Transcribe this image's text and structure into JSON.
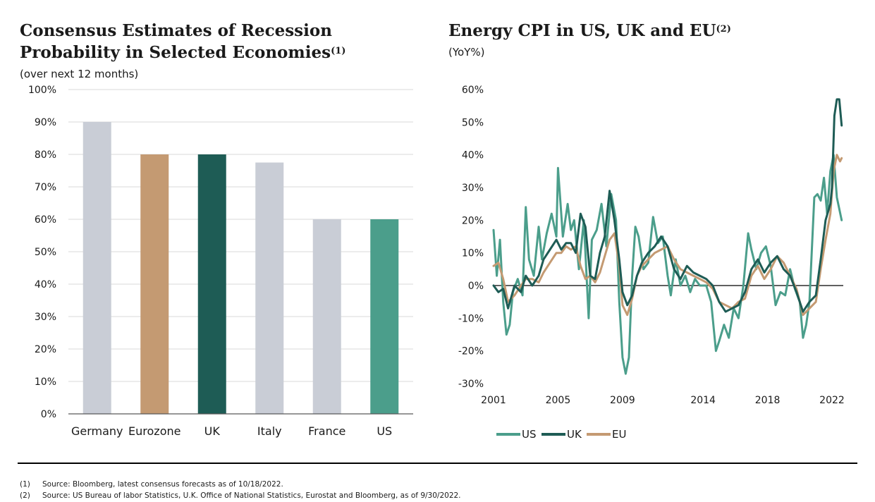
{
  "left_chart": {
    "title_line1": "Consensus Estimates of Recession",
    "title_line2": "Probability in Selected Economies",
    "title_sup": "(1)",
    "subtitle": "(over next 12 months)"
  },
  "right_chart": {
    "title": "Energy CPI in US, UK and EU",
    "title_sup": "(2)",
    "subtitle": "(YoY%)"
  },
  "footnotes": [
    {
      "num": "(1)",
      "text": "Source: Bloomberg, latest consensus forecasts as of 10/18/2022."
    },
    {
      "num": "(2)",
      "text": "Source: US Bureau of labor Statistics, U.K. Office of National Statistics, Eurostat and Bloomberg, as of 9/30/2022."
    }
  ],
  "chart_data": [
    {
      "type": "bar",
      "categories": [
        "Germany",
        "Eurozone",
        "UK",
        "Italy",
        "France",
        "US"
      ],
      "values": [
        90,
        80,
        80,
        77.5,
        60,
        60
      ],
      "colors": [
        "#c9cdd6",
        "#c49a72",
        "#1e5c55",
        "#c9cdd6",
        "#c9cdd6",
        "#4b9e8b"
      ],
      "ylim": [
        0,
        100
      ],
      "yticks": [
        0,
        10,
        20,
        30,
        40,
        50,
        60,
        70,
        80,
        90,
        100
      ],
      "ytick_labels": [
        "0%",
        "10%",
        "20%",
        "30%",
        "40%",
        "50%",
        "60%",
        "70%",
        "80%",
        "90%",
        "100%"
      ],
      "grid": true
    },
    {
      "type": "line",
      "xlim": [
        2001.0,
        2022.7
      ],
      "ylim": [
        -30,
        60
      ],
      "xticks": [
        2001,
        2005,
        2009,
        2014,
        2018,
        2022
      ],
      "xtick_labels": [
        "2001",
        "2005",
        "2009",
        "2014",
        "2018",
        "2022"
      ],
      "yticks": [
        -30,
        -20,
        -10,
        0,
        10,
        20,
        30,
        40,
        50,
        60
      ],
      "ytick_labels": [
        "-30%",
        "-20%",
        "-10%",
        "0%",
        "10%",
        "20%",
        "30%",
        "40%",
        "50%",
        "60%"
      ],
      "zero_line": true,
      "legend_position": "bottom",
      "series": [
        {
          "name": "US",
          "color": "#4b9e8b",
          "x": [
            2001.0,
            2001.2,
            2001.4,
            2001.6,
            2001.8,
            2002.0,
            2002.2,
            2002.5,
            2002.8,
            2003.0,
            2003.2,
            2003.5,
            2003.8,
            2004.0,
            2004.3,
            2004.6,
            2004.9,
            2005.0,
            2005.3,
            2005.6,
            2005.8,
            2006.0,
            2006.3,
            2006.6,
            2006.9,
            2007.1,
            2007.4,
            2007.7,
            2008.0,
            2008.3,
            2008.6,
            2008.8,
            2009.0,
            2009.2,
            2009.4,
            2009.6,
            2009.8,
            2010.0,
            2010.3,
            2010.6,
            2010.9,
            2011.2,
            2011.5,
            2011.8,
            2012.0,
            2012.3,
            2012.6,
            2012.9,
            2013.2,
            2013.5,
            2013.8,
            2014.2,
            2014.5,
            2014.8,
            2015.0,
            2015.3,
            2015.6,
            2015.9,
            2016.2,
            2016.5,
            2016.8,
            2017.0,
            2017.3,
            2017.6,
            2017.9,
            2018.2,
            2018.5,
            2018.8,
            2019.1,
            2019.4,
            2019.7,
            2020.0,
            2020.2,
            2020.4,
            2020.6,
            2020.9,
            2021.1,
            2021.3,
            2021.5,
            2021.7,
            2021.9,
            2022.1,
            2022.3,
            2022.6
          ],
          "y": [
            17,
            3,
            14,
            -5,
            -15,
            -12,
            -2,
            2,
            -3,
            24,
            8,
            3,
            18,
            8,
            16,
            22,
            15,
            36,
            15,
            25,
            17,
            20,
            5,
            20,
            -10,
            14,
            17,
            25,
            12,
            28,
            20,
            -5,
            -22,
            -27,
            -22,
            3,
            18,
            15,
            5,
            7,
            21,
            13,
            15,
            3,
            -3,
            8,
            0,
            3,
            -2,
            2,
            0,
            0,
            -5,
            -20,
            -17,
            -12,
            -16,
            -7,
            -10,
            0,
            16,
            11,
            5,
            10,
            12,
            6,
            -6,
            -2,
            -3,
            5,
            -1,
            -5,
            -16,
            -12,
            -5,
            27,
            28,
            26,
            33,
            22,
            35,
            40,
            27,
            20
          ]
        },
        {
          "name": "UK",
          "color": "#1e5c55",
          "x": [
            2001.0,
            2001.3,
            2001.6,
            2001.9,
            2002.3,
            2002.7,
            2003.0,
            2003.4,
            2003.8,
            2004.1,
            2004.5,
            2004.9,
            2005.2,
            2005.5,
            2005.8,
            2006.1,
            2006.4,
            2006.7,
            2007.0,
            2007.3,
            2007.6,
            2007.9,
            2008.2,
            2008.5,
            2008.8,
            2009.0,
            2009.3,
            2009.6,
            2009.9,
            2010.2,
            2010.6,
            2011.0,
            2011.4,
            2011.8,
            2012.2,
            2012.6,
            2013.0,
            2013.4,
            2013.8,
            2014.2,
            2014.6,
            2015.0,
            2015.4,
            2015.8,
            2016.2,
            2016.6,
            2017.0,
            2017.4,
            2017.8,
            2018.2,
            2018.6,
            2019.0,
            2019.4,
            2019.8,
            2020.2,
            2020.6,
            2021.0,
            2021.3,
            2021.6,
            2021.9,
            2022.0,
            2022.15,
            2022.3,
            2022.45,
            2022.6
          ],
          "y": [
            0,
            -2,
            -1,
            -7,
            0,
            -2,
            3,
            0,
            3,
            8,
            11,
            14,
            11,
            13,
            13,
            10,
            22,
            18,
            3,
            2,
            10,
            15,
            29,
            20,
            8,
            -2,
            -6,
            -3,
            3,
            7,
            10,
            12,
            15,
            12,
            5,
            2,
            6,
            4,
            3,
            2,
            0,
            -5,
            -8,
            -7,
            -6,
            -2,
            5,
            8,
            4,
            7,
            9,
            5,
            3,
            -2,
            -8,
            -5,
            -3,
            8,
            20,
            25,
            30,
            52,
            57,
            57,
            49
          ]
        },
        {
          "name": "EU",
          "color": "#c49a72",
          "x": [
            2001.0,
            2001.3,
            2001.6,
            2001.9,
            2002.3,
            2002.7,
            2003.0,
            2003.4,
            2003.8,
            2004.1,
            2004.5,
            2004.9,
            2005.2,
            2005.5,
            2005.8,
            2006.1,
            2006.4,
            2006.7,
            2007.0,
            2007.3,
            2007.6,
            2007.9,
            2008.2,
            2008.5,
            2008.8,
            2009.0,
            2009.3,
            2009.6,
            2009.9,
            2010.2,
            2010.6,
            2011.0,
            2011.4,
            2011.8,
            2012.2,
            2012.6,
            2013.0,
            2013.4,
            2013.8,
            2014.2,
            2014.6,
            2015.0,
            2015.4,
            2015.8,
            2016.2,
            2016.6,
            2017.0,
            2017.4,
            2017.8,
            2018.2,
            2018.6,
            2019.0,
            2019.4,
            2019.8,
            2020.2,
            2020.6,
            2021.0,
            2021.3,
            2021.6,
            2021.9,
            2022.1,
            2022.3,
            2022.5,
            2022.6
          ],
          "y": [
            6,
            7,
            2,
            -5,
            -3,
            0,
            2,
            2,
            1,
            4,
            7,
            10,
            10,
            12,
            11,
            12,
            6,
            2,
            3,
            1,
            4,
            9,
            14,
            16,
            6,
            -6,
            -9,
            -4,
            3,
            6,
            8,
            10,
            11,
            12,
            8,
            5,
            4,
            3,
            2,
            1,
            -1,
            -5,
            -6,
            -7,
            -5,
            -4,
            3,
            6,
            2,
            5,
            9,
            7,
            3,
            -1,
            -9,
            -7,
            -5,
            5,
            14,
            22,
            35,
            40,
            38,
            39
          ]
        }
      ]
    }
  ]
}
